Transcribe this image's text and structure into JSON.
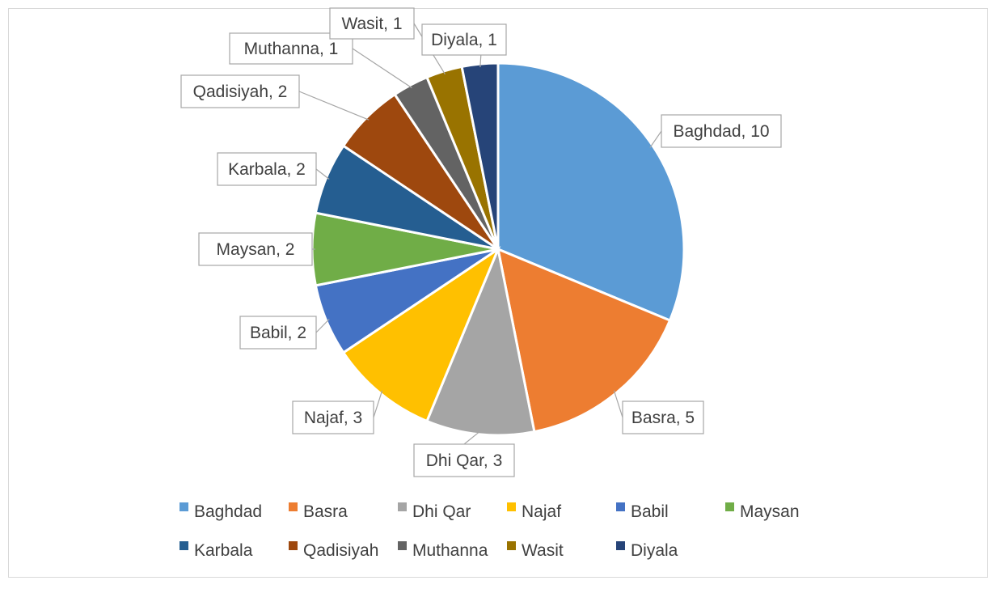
{
  "chart_data": {
    "type": "pie",
    "title": "",
    "legend_placement": "bottom",
    "slices": [
      {
        "label": "Baghdad",
        "value": 10,
        "data_label": "Baghdad, 10",
        "color": "#5B9BD5"
      },
      {
        "label": "Basra",
        "value": 5,
        "data_label": "Basra, 5",
        "color": "#ED7D31"
      },
      {
        "label": "Dhi Qar",
        "value": 3,
        "data_label": "Dhi Qar, 3",
        "color": "#A5A5A5"
      },
      {
        "label": "Najaf",
        "value": 3,
        "data_label": "Najaf, 3",
        "color": "#FFC000"
      },
      {
        "label": "Babil",
        "value": 2,
        "data_label": "Babil, 2",
        "color": "#4472C4"
      },
      {
        "label": "Maysan",
        "value": 2,
        "data_label": "Maysan, 2",
        "color": "#70AD47"
      },
      {
        "label": "Karbala",
        "value": 2,
        "data_label": "Karbala, 2",
        "color": "#255E91"
      },
      {
        "label": "Qadisiyah",
        "value": 2,
        "data_label": "Qadisiyah, 2",
        "color": "#9E480E"
      },
      {
        "label": "Muthanna",
        "value": 1,
        "data_label": "Muthanna, 1",
        "color": "#636363"
      },
      {
        "label": "Wasit",
        "value": 1,
        "data_label": "Wasit, 1",
        "color": "#997300"
      },
      {
        "label": "Diyala",
        "value": 1,
        "data_label": "Diyala, 1",
        "color": "#264478"
      }
    ]
  }
}
